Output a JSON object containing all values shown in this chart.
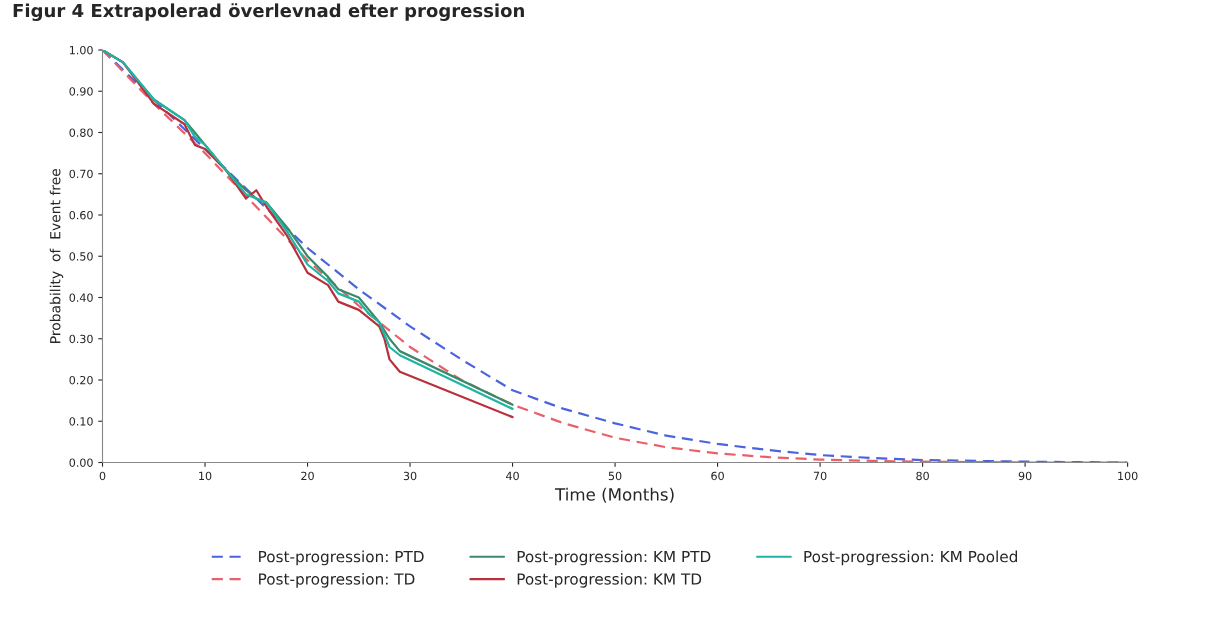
{
  "chart_data": {
    "type": "line",
    "title": "Figur 4 Extrapolerad överlevnad efter progression",
    "xlabel": "Time (Months)",
    "ylabel": "Probability  of  Event free",
    "xlim": [
      0,
      100
    ],
    "xticks": [
      0,
      10,
      20,
      30,
      40,
      50,
      60,
      70,
      80,
      90,
      100
    ],
    "ylim": [
      0,
      1
    ],
    "yticks": [
      {
        "value": 0,
        "label": "0.00"
      },
      {
        "value": 0.1,
        "label": "0.10"
      },
      {
        "value": 0.2,
        "label": "0.20"
      },
      {
        "value": 0.3,
        "label": "0.30"
      },
      {
        "value": 0.4,
        "label": "0.40"
      },
      {
        "value": 0.5,
        "label": "0.50"
      },
      {
        "value": 0.6,
        "label": "0.60"
      },
      {
        "value": 0.7,
        "label": "0.70"
      },
      {
        "value": 0.8,
        "label": "0.80"
      },
      {
        "value": 0.9,
        "label": "0.90"
      },
      {
        "value": 1,
        "label": "1.00"
      }
    ],
    "grid": false,
    "legend": "bottom",
    "series": [
      {
        "name": "Post-progression: PTD",
        "color": "#4a64e0",
        "line_style": "dashed",
        "x": [
          0,
          5,
          10,
          15,
          20,
          25,
          30,
          35,
          40,
          45,
          50,
          55,
          60,
          65,
          70,
          75,
          80,
          90,
          100
        ],
        "values": [
          1.0,
          0.88,
          0.76,
          0.64,
          0.52,
          0.42,
          0.33,
          0.25,
          0.175,
          0.13,
          0.095,
          0.065,
          0.045,
          0.03,
          0.018,
          0.011,
          0.006,
          0.002,
          0.0
        ]
      },
      {
        "name": "Post-progression: TD",
        "color": "#e8606a",
        "line_style": "dashed",
        "x": [
          0,
          5,
          10,
          15,
          20,
          25,
          30,
          35,
          40,
          45,
          50,
          55,
          60,
          65,
          70,
          75,
          80,
          90,
          100
        ],
        "values": [
          1.0,
          0.87,
          0.75,
          0.62,
          0.49,
          0.38,
          0.28,
          0.2,
          0.14,
          0.095,
          0.06,
          0.037,
          0.022,
          0.013,
          0.007,
          0.004,
          0.002,
          0.0,
          0.0
        ]
      },
      {
        "name": "Post-progression: KM PTD",
        "color": "#3a8a6a",
        "line_style": "solid",
        "x": [
          0,
          2,
          5,
          8,
          9,
          10,
          12,
          14,
          15,
          16,
          18,
          20,
          22,
          23,
          25,
          26,
          27,
          28,
          29,
          40
        ],
        "values": [
          1.0,
          0.97,
          0.88,
          0.83,
          0.8,
          0.77,
          0.71,
          0.66,
          0.64,
          0.63,
          0.57,
          0.5,
          0.45,
          0.42,
          0.4,
          0.37,
          0.34,
          0.3,
          0.27,
          0.14
        ]
      },
      {
        "name": "Post-progression: KM TD",
        "color": "#b8303c",
        "line_style": "solid",
        "x": [
          0,
          2,
          5,
          8,
          9,
          10,
          12,
          14,
          15,
          16,
          18,
          20,
          22,
          23,
          25,
          26,
          27,
          27.5,
          28,
          29,
          40
        ],
        "values": [
          1.0,
          0.97,
          0.87,
          0.82,
          0.77,
          0.76,
          0.71,
          0.64,
          0.66,
          0.62,
          0.55,
          0.46,
          0.43,
          0.39,
          0.37,
          0.35,
          0.33,
          0.3,
          0.25,
          0.22,
          0.11
        ]
      },
      {
        "name": "Post-progression: KM Pooled",
        "color": "#20b4a4",
        "line_style": "solid",
        "x": [
          0,
          2,
          5,
          8,
          9,
          10,
          12,
          14,
          15,
          16,
          18,
          20,
          22,
          23,
          25,
          26,
          27,
          28,
          29,
          40
        ],
        "values": [
          1.0,
          0.97,
          0.88,
          0.83,
          0.79,
          0.77,
          0.71,
          0.65,
          0.64,
          0.63,
          0.56,
          0.48,
          0.44,
          0.41,
          0.39,
          0.36,
          0.34,
          0.28,
          0.26,
          0.13
        ]
      }
    ]
  }
}
